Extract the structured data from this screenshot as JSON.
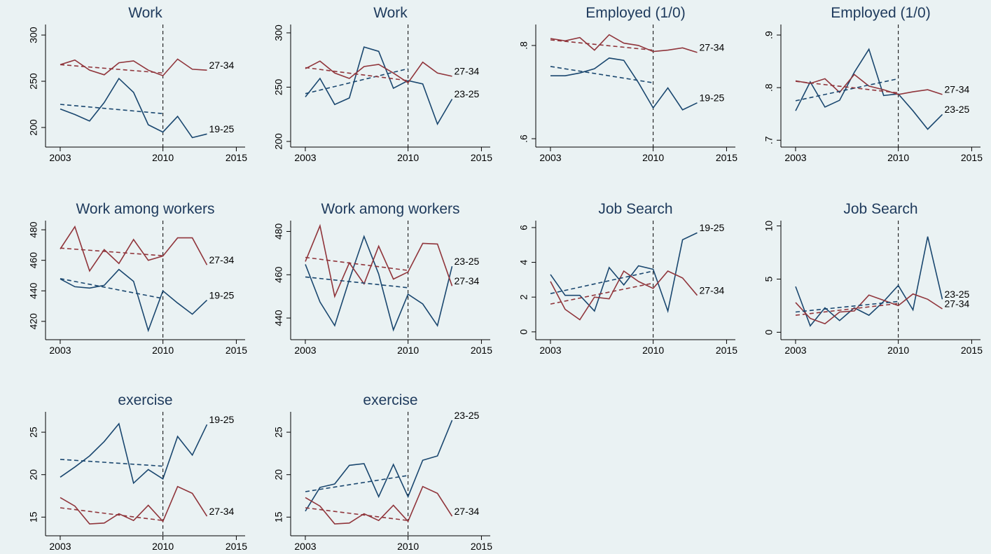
{
  "chart_data": [
    {
      "type": "line",
      "title": "Work",
      "x": [
        2003,
        2004,
        2005,
        2006,
        2007,
        2008,
        2009,
        2010,
        2011,
        2012,
        2013
      ],
      "xlim": [
        2002,
        2015.6
      ],
      "xticks": [
        2003,
        2010,
        2015
      ],
      "ylim": [
        178.8,
        311.4
      ],
      "yticks": [
        200,
        250,
        300
      ],
      "vline": 2010,
      "series": [
        {
          "name": "19-25",
          "color": "#1a476f",
          "values": [
            220,
            214,
            207,
            227,
            253,
            238,
            203,
            195,
            212,
            189,
            193
          ]
        },
        {
          "name": "27-34",
          "color": "#90353b",
          "values": [
            268,
            273,
            262,
            257,
            270,
            272,
            262,
            256,
            274,
            263,
            262
          ]
        },
        {
          "color": "#1a476f",
          "dashed": true,
          "x": [
            2003,
            2010
          ],
          "values": [
            225,
            215
          ]
        },
        {
          "color": "#90353b",
          "dashed": true,
          "x": [
            2003,
            2010
          ],
          "values": [
            268,
            259
          ]
        }
      ]
    },
    {
      "type": "line",
      "title": "Work",
      "x": [
        2003,
        2004,
        2005,
        2006,
        2007,
        2008,
        2009,
        2010,
        2011,
        2012,
        2013
      ],
      "xlim": [
        2002,
        2015.6
      ],
      "xticks": [
        2003,
        2010,
        2015
      ],
      "ylim": [
        194.8,
        307.7
      ],
      "yticks": [
        200,
        250,
        300
      ],
      "vline": 2010,
      "series": [
        {
          "name": "23-25",
          "color": "#1a476f",
          "values": [
            241,
            258,
            234,
            240,
            287,
            283,
            249,
            256,
            253,
            216,
            239
          ]
        },
        {
          "name": "27-34",
          "color": "#90353b",
          "values": [
            267,
            274,
            263,
            258,
            269,
            271,
            263,
            254,
            273,
            263,
            260
          ]
        },
        {
          "color": "#1a476f",
          "dashed": true,
          "x": [
            2003,
            2010
          ],
          "values": [
            244,
            267
          ]
        },
        {
          "color": "#90353b",
          "dashed": true,
          "x": [
            2003,
            2010
          ],
          "values": [
            268,
            256
          ]
        }
      ]
    },
    {
      "type": "line",
      "title": "Employed (1/0)",
      "x": [
        2003,
        2004,
        2005,
        2006,
        2007,
        2008,
        2009,
        2010,
        2011,
        2012,
        2013
      ],
      "xlim": [
        2002,
        2015.6
      ],
      "xticks": [
        2003,
        2010,
        2015
      ],
      "ylim": [
        0.582,
        0.845
      ],
      "yticks": [
        {
          "value": 0.6,
          "label": ".6"
        },
        {
          "value": 0.8,
          "label": ".8"
        }
      ],
      "vline": 2010,
      "series": [
        {
          "name": "19-25",
          "color": "#1a476f",
          "values": [
            0.735,
            0.735,
            0.741,
            0.75,
            0.773,
            0.768,
            0.72,
            0.666,
            0.709,
            0.662,
            0.677
          ]
        },
        {
          "name": "27-34",
          "color": "#90353b",
          "values": [
            0.815,
            0.81,
            0.817,
            0.79,
            0.823,
            0.805,
            0.8,
            0.787,
            0.79,
            0.795,
            0.785
          ]
        },
        {
          "color": "#1a476f",
          "dashed": true,
          "x": [
            2003,
            2010
          ],
          "values": [
            0.755,
            0.72
          ]
        },
        {
          "color": "#90353b",
          "dashed": true,
          "x": [
            2003,
            2010
          ],
          "values": [
            0.812,
            0.79
          ]
        }
      ]
    },
    {
      "type": "line",
      "title": "Employed (1/0)",
      "x": [
        2003,
        2004,
        2005,
        2006,
        2007,
        2008,
        2009,
        2010,
        2011,
        2012,
        2013
      ],
      "xlim": [
        2002,
        2015.6
      ],
      "xticks": [
        2003,
        2010,
        2015
      ],
      "ylim": [
        0.687,
        0.92
      ],
      "yticks": [
        {
          "value": 0.7,
          "label": ".7"
        },
        {
          "value": 0.8,
          "label": ".8"
        },
        {
          "value": 0.9,
          "label": ".9"
        }
      ],
      "vline": 2010,
      "series": [
        {
          "name": "23-25",
          "color": "#1a476f",
          "values": [
            0.756,
            0.811,
            0.763,
            0.776,
            0.829,
            0.873,
            0.785,
            0.788,
            0.756,
            0.721,
            0.749
          ]
        },
        {
          "name": "27-34",
          "color": "#90353b",
          "values": [
            0.813,
            0.808,
            0.817,
            0.791,
            0.825,
            0.803,
            0.796,
            0.787,
            0.792,
            0.796,
            0.787
          ]
        },
        {
          "color": "#1a476f",
          "dashed": true,
          "x": [
            2003,
            2010
          ],
          "values": [
            0.775,
            0.817
          ]
        },
        {
          "color": "#90353b",
          "dashed": true,
          "x": [
            2003,
            2010
          ],
          "values": [
            0.812,
            0.79
          ]
        }
      ]
    },
    {
      "type": "line",
      "title": "Work among workers",
      "x": [
        2003,
        2004,
        2005,
        2006,
        2007,
        2008,
        2009,
        2010,
        2011,
        2012,
        2013
      ],
      "xlim": [
        2002,
        2015.6
      ],
      "xticks": [
        2003,
        2010,
        2015
      ],
      "ylim": [
        408,
        486
      ],
      "yticks": [
        420,
        440,
        460,
        480
      ],
      "vline": 2010,
      "series": [
        {
          "name": "19-25",
          "color": "#1a476f",
          "values": [
            447.8,
            442.7,
            441.8,
            443.6,
            454,
            446.2,
            414,
            440,
            432,
            424.7,
            433.9
          ]
        },
        {
          "name": "27-34",
          "color": "#90353b",
          "values": [
            467.4,
            482,
            453,
            467,
            457.9,
            473.6,
            460,
            462.8,
            474.7,
            474.7,
            457
          ]
        },
        {
          "color": "#1a476f",
          "dashed": true,
          "x": [
            2003,
            2010
          ],
          "values": [
            448,
            435
          ]
        },
        {
          "color": "#90353b",
          "dashed": true,
          "x": [
            2003,
            2010
          ],
          "values": [
            468,
            463
          ]
        }
      ]
    },
    {
      "type": "line",
      "title": "Work among workers",
      "x": [
        2003,
        2004,
        2005,
        2006,
        2007,
        2008,
        2009,
        2010,
        2011,
        2012,
        2013
      ],
      "xlim": [
        2002,
        2015.6
      ],
      "xticks": [
        2003,
        2010,
        2015
      ],
      "ylim": [
        430,
        485
      ],
      "yticks": [
        440,
        460,
        480
      ],
      "vline": 2010,
      "series": [
        {
          "name": "23-25",
          "color": "#1a476f",
          "values": [
            464.8,
            447.4,
            436.5,
            457.7,
            477.7,
            460.3,
            434.5,
            451,
            446.5,
            436.5,
            463.9
          ]
        },
        {
          "name": "27-34",
          "color": "#90353b",
          "values": [
            466.1,
            482.6,
            450,
            465.5,
            455.8,
            473.2,
            458,
            461.3,
            474.5,
            474.2,
            454.8
          ]
        },
        {
          "color": "#1a476f",
          "dashed": true,
          "x": [
            2003,
            2010
          ],
          "values": [
            459,
            454
          ]
        },
        {
          "color": "#90353b",
          "dashed": true,
          "x": [
            2003,
            2010
          ],
          "values": [
            468,
            462
          ]
        }
      ]
    },
    {
      "type": "line",
      "title": "Job Search",
      "x": [
        2003,
        2004,
        2005,
        2006,
        2007,
        2008,
        2009,
        2010,
        2011,
        2012,
        2013
      ],
      "xlim": [
        2002,
        2015.6
      ],
      "xticks": [
        2003,
        2010,
        2015
      ],
      "ylim": [
        -0.45,
        6.4
      ],
      "yticks": [
        0,
        2,
        4,
        6
      ],
      "vline": 2010,
      "series": [
        {
          "name": "19-25",
          "color": "#1a476f",
          "values": [
            3.3,
            2.1,
            2.1,
            1.2,
            3.7,
            2.7,
            3.8,
            3.6,
            1.2,
            5.3,
            5.7
          ]
        },
        {
          "name": "27-34",
          "color": "#90353b",
          "values": [
            2.9,
            1.3,
            0.7,
            2.0,
            1.9,
            3.5,
            2.9,
            2.5,
            3.5,
            3.1,
            2.1
          ]
        },
        {
          "color": "#1a476f",
          "dashed": true,
          "x": [
            2003,
            2010
          ],
          "values": [
            2.2,
            3.5
          ]
        },
        {
          "color": "#90353b",
          "dashed": true,
          "x": [
            2003,
            2010
          ],
          "values": [
            1.6,
            2.8
          ]
        }
      ]
    },
    {
      "type": "line",
      "title": "Job Search",
      "x": [
        2003,
        2004,
        2005,
        2006,
        2007,
        2008,
        2009,
        2010,
        2011,
        2012,
        2013
      ],
      "xlim": [
        2002,
        2015.6
      ],
      "xticks": [
        2003,
        2010,
        2015
      ],
      "ylim": [
        -0.7,
        10.5
      ],
      "yticks": [
        0,
        5,
        10
      ],
      "vline": 2010,
      "series": [
        {
          "name": "23-25",
          "color": "#1a476f",
          "values": [
            4.3,
            0.6,
            2.3,
            1.1,
            2.3,
            1.6,
            2.9,
            4.4,
            2.1,
            9.0,
            3.1
          ]
        },
        {
          "name": "27-34",
          "color": "#90353b",
          "values": [
            2.8,
            1.3,
            0.8,
            1.9,
            2.0,
            3.5,
            3.0,
            2.5,
            3.6,
            3.1,
            2.2
          ]
        },
        {
          "color": "#1a476f",
          "dashed": true,
          "x": [
            2003,
            2010
          ],
          "values": [
            1.9,
            2.9
          ]
        },
        {
          "color": "#90353b",
          "dashed": true,
          "x": [
            2003,
            2010
          ],
          "values": [
            1.6,
            2.7
          ]
        }
      ]
    },
    {
      "type": "line",
      "title": "exercise",
      "x": [
        2003,
        2004,
        2005,
        2006,
        2007,
        2008,
        2009,
        2010,
        2011,
        2012,
        2013
      ],
      "xlim": [
        2002,
        2015.6
      ],
      "xticks": [
        2003,
        2010,
        2015
      ],
      "ylim": [
        12.8,
        27.4
      ],
      "yticks": [
        15,
        20,
        25
      ],
      "vline": 2010,
      "series": [
        {
          "name": "19-25",
          "color": "#1a476f",
          "values": [
            19.7,
            20.9,
            22.2,
            23.9,
            26.0,
            19.0,
            20.6,
            19.5,
            24.5,
            22.3,
            25.9
          ]
        },
        {
          "name": "27-34",
          "color": "#90353b",
          "values": [
            17.3,
            16.3,
            14.2,
            14.3,
            15.4,
            14.6,
            16.4,
            14.5,
            18.6,
            17.8,
            15.1
          ]
        },
        {
          "color": "#1a476f",
          "dashed": true,
          "x": [
            2003,
            2010
          ],
          "values": [
            21.8,
            21.0
          ]
        },
        {
          "color": "#90353b",
          "dashed": true,
          "x": [
            2003,
            2010
          ],
          "values": [
            16.1,
            14.6
          ]
        }
      ]
    },
    {
      "type": "line",
      "title": "exercise",
      "x": [
        2003,
        2004,
        2005,
        2006,
        2007,
        2008,
        2009,
        2010,
        2011,
        2012,
        2013
      ],
      "xlim": [
        2002,
        2015.6
      ],
      "xticks": [
        2003,
        2010,
        2015
      ],
      "ylim": [
        12.8,
        27.4
      ],
      "yticks": [
        15,
        20,
        25
      ],
      "vline": 2010,
      "series": [
        {
          "name": "23-25",
          "color": "#1a476f",
          "values": [
            15.7,
            18.5,
            18.9,
            21.1,
            21.3,
            17.4,
            21.2,
            17.4,
            21.7,
            22.2,
            26.4
          ]
        },
        {
          "name": "27-34",
          "color": "#90353b",
          "values": [
            17.3,
            16.3,
            14.2,
            14.3,
            15.4,
            14.6,
            16.4,
            14.5,
            18.6,
            17.8,
            15.1
          ]
        },
        {
          "color": "#1a476f",
          "dashed": true,
          "x": [
            2003,
            2010
          ],
          "values": [
            18.0,
            19.9
          ]
        },
        {
          "color": "#90353b",
          "dashed": true,
          "x": [
            2003,
            2010
          ],
          "values": [
            16.1,
            14.6
          ]
        }
      ]
    }
  ]
}
